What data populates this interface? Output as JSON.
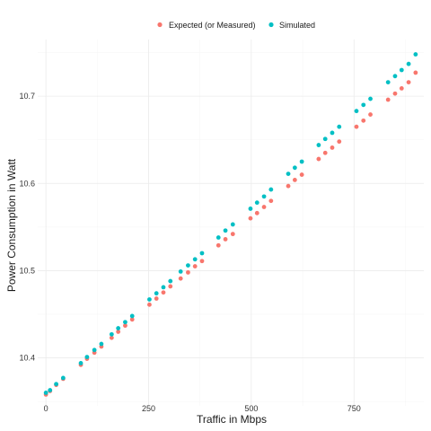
{
  "chart_data": {
    "type": "scatter",
    "xlabel": "Traffic in Mbps",
    "ylabel": "Power Consumption in Watt",
    "xlim": [
      -20,
      920
    ],
    "ylim": [
      10.345,
      10.765
    ],
    "x_ticks": [
      0,
      250,
      500,
      750
    ],
    "x_tick_labels": [
      "0",
      "250",
      "500",
      "750"
    ],
    "y_ticks": [
      10.4,
      10.5,
      10.6,
      10.7
    ],
    "y_tick_labels": [
      "10.4",
      "10.5",
      "10.6",
      "10.7"
    ],
    "grid": true,
    "legend_position": "top",
    "series": [
      {
        "name": "Expected (or Measured)",
        "color": "#F8766D",
        "points": [
          [
            0,
            10.358
          ],
          [
            10,
            10.362
          ],
          [
            25,
            10.369
          ],
          [
            42,
            10.376
          ],
          [
            85,
            10.392
          ],
          [
            100,
            10.399
          ],
          [
            118,
            10.406
          ],
          [
            135,
            10.413
          ],
          [
            160,
            10.423
          ],
          [
            176,
            10.43
          ],
          [
            193,
            10.437
          ],
          [
            210,
            10.444
          ],
          [
            252,
            10.461
          ],
          [
            269,
            10.468
          ],
          [
            286,
            10.475
          ],
          [
            303,
            10.482
          ],
          [
            328,
            10.491
          ],
          [
            346,
            10.498
          ],
          [
            363,
            10.505
          ],
          [
            380,
            10.511
          ],
          [
            420,
            10.529
          ],
          [
            437,
            10.536
          ],
          [
            455,
            10.542
          ],
          [
            498,
            10.56
          ],
          [
            514,
            10.566
          ],
          [
            531,
            10.573
          ],
          [
            548,
            10.58
          ],
          [
            590,
            10.597
          ],
          [
            606,
            10.604
          ],
          [
            623,
            10.61
          ],
          [
            664,
            10.628
          ],
          [
            680,
            10.635
          ],
          [
            697,
            10.641
          ],
          [
            714,
            10.648
          ],
          [
            756,
            10.665
          ],
          [
            773,
            10.672
          ],
          [
            790,
            10.679
          ],
          [
            833,
            10.696
          ],
          [
            850,
            10.703
          ],
          [
            866,
            10.709
          ],
          [
            883,
            10.716
          ],
          [
            900,
            10.727
          ]
        ]
      },
      {
        "name": "Simulated",
        "color": "#00BFC4",
        "points": [
          [
            0,
            10.36
          ],
          [
            10,
            10.363
          ],
          [
            25,
            10.37
          ],
          [
            42,
            10.377
          ],
          [
            85,
            10.394
          ],
          [
            100,
            10.401
          ],
          [
            118,
            10.409
          ],
          [
            135,
            10.416
          ],
          [
            160,
            10.427
          ],
          [
            176,
            10.434
          ],
          [
            193,
            10.441
          ],
          [
            210,
            10.448
          ],
          [
            252,
            10.467
          ],
          [
            269,
            10.474
          ],
          [
            286,
            10.481
          ],
          [
            303,
            10.488
          ],
          [
            328,
            10.499
          ],
          [
            346,
            10.506
          ],
          [
            363,
            10.513
          ],
          [
            380,
            10.52
          ],
          [
            420,
            10.538
          ],
          [
            437,
            10.546
          ],
          [
            455,
            10.553
          ],
          [
            498,
            10.571
          ],
          [
            514,
            10.578
          ],
          [
            531,
            10.585
          ],
          [
            548,
            10.593
          ],
          [
            590,
            10.611
          ],
          [
            606,
            10.618
          ],
          [
            623,
            10.625
          ],
          [
            664,
            10.644
          ],
          [
            680,
            10.651
          ],
          [
            697,
            10.658
          ],
          [
            714,
            10.665
          ],
          [
            756,
            10.683
          ],
          [
            773,
            10.69
          ],
          [
            790,
            10.697
          ],
          [
            833,
            10.716
          ],
          [
            850,
            10.723
          ],
          [
            866,
            10.73
          ],
          [
            883,
            10.737
          ],
          [
            900,
            10.748
          ]
        ]
      }
    ]
  }
}
